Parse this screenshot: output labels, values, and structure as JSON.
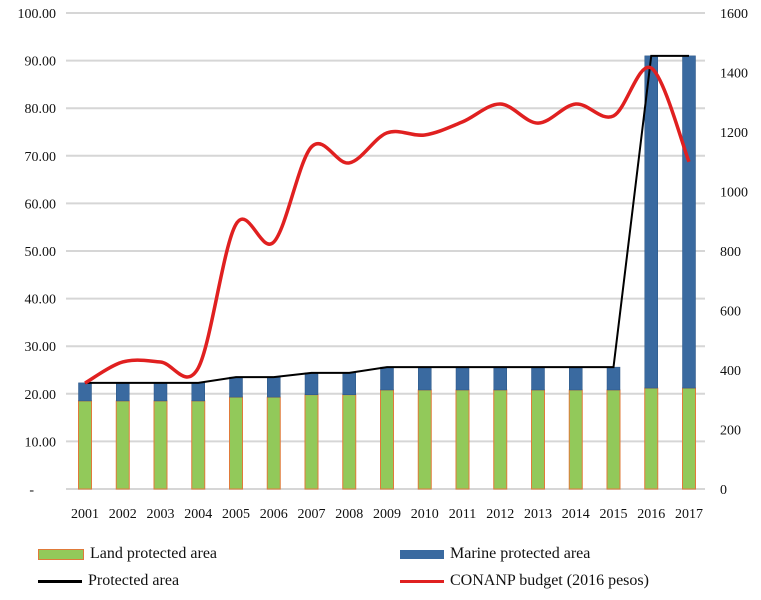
{
  "chart_data": {
    "type": "bar",
    "categories": [
      "2001",
      "2002",
      "2003",
      "2004",
      "2005",
      "2006",
      "2007",
      "2008",
      "2009",
      "2010",
      "2011",
      "2012",
      "2013",
      "2014",
      "2015",
      "2016",
      "2017"
    ],
    "left_axis": {
      "ylim": [
        0,
        100
      ],
      "ticks": [
        "-",
        "10.00",
        "20.00",
        "30.00",
        "40.00",
        "50.00",
        "60.00",
        "70.00",
        "80.00",
        "90.00",
        "100.00"
      ]
    },
    "right_axis": {
      "ylim": [
        0,
        1600
      ],
      "ticks": [
        "0",
        "200",
        "400",
        "600",
        "800",
        "1000",
        "1200",
        "1400",
        "1600"
      ]
    },
    "grid": true,
    "legend_placement": "bottom",
    "series": [
      {
        "name": "Land protected area",
        "kind": "stacked-bar",
        "axis": "left",
        "color": "#92c95a",
        "edge": "#e07a3a",
        "values": [
          18.5,
          18.5,
          18.5,
          18.5,
          19.3,
          19.3,
          19.8,
          19.8,
          20.8,
          20.8,
          20.8,
          20.8,
          20.8,
          20.8,
          20.8,
          21.2,
          21.2
        ]
      },
      {
        "name": "Marine protected area",
        "kind": "stacked-bar",
        "axis": "left",
        "color": "#3a6aa0",
        "values": [
          3.8,
          3.8,
          3.8,
          3.8,
          4.2,
          4.2,
          4.6,
          4.6,
          4.8,
          4.8,
          4.8,
          4.8,
          4.8,
          4.8,
          4.8,
          69.8,
          69.8
        ]
      },
      {
        "name": "Protected area",
        "kind": "line",
        "axis": "left",
        "color": "#000000",
        "values": [
          22.3,
          22.3,
          22.3,
          22.3,
          23.5,
          23.5,
          24.4,
          24.4,
          25.6,
          25.6,
          25.6,
          25.6,
          25.6,
          25.6,
          25.6,
          91.0,
          91.0
        ]
      },
      {
        "name": "CONANP budget (2016 pesos)",
        "kind": "line",
        "axis": "right",
        "color": "#e02020",
        "values": [
          356,
          427,
          427,
          407,
          890,
          830,
          1150,
          1096,
          1197,
          1190,
          1234,
          1294,
          1230,
          1294,
          1254,
          1415,
          1100
        ]
      }
    ]
  }
}
